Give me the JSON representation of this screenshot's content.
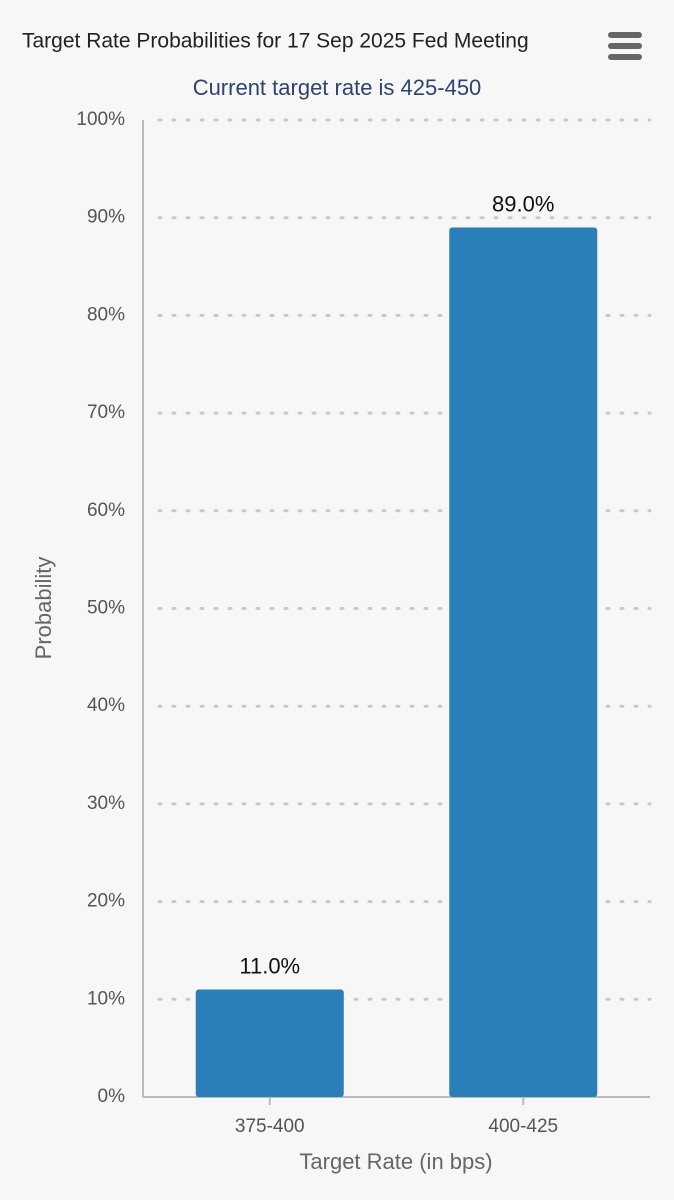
{
  "chart_data": {
    "type": "bar",
    "title": "Target Rate Probabilities for 17 Sep 2025 Fed Meeting",
    "subtitle": "Current target rate is 425-450",
    "x_label": "Target Rate (in bps)",
    "y_label": "Probability",
    "categories": [
      "375-400",
      "400-425"
    ],
    "values": [
      11.0,
      89.0
    ],
    "value_labels": [
      "11.0%",
      "89.0%"
    ],
    "color": "#2b7fb8",
    "ylim": [
      0,
      100
    ],
    "yticks": [
      {
        "value": 0,
        "label": "0%"
      },
      {
        "value": 10,
        "label": "10%"
      },
      {
        "value": 20,
        "label": "20%"
      },
      {
        "value": 30,
        "label": "30%"
      },
      {
        "value": 40,
        "label": "40%"
      },
      {
        "value": 50,
        "label": "50%"
      },
      {
        "value": 60,
        "label": "60%"
      },
      {
        "value": 70,
        "label": "70%"
      },
      {
        "value": 80,
        "label": "80%"
      },
      {
        "value": 90,
        "label": "90%"
      },
      {
        "value": 100,
        "label": "100%"
      }
    ],
    "grid": true
  }
}
